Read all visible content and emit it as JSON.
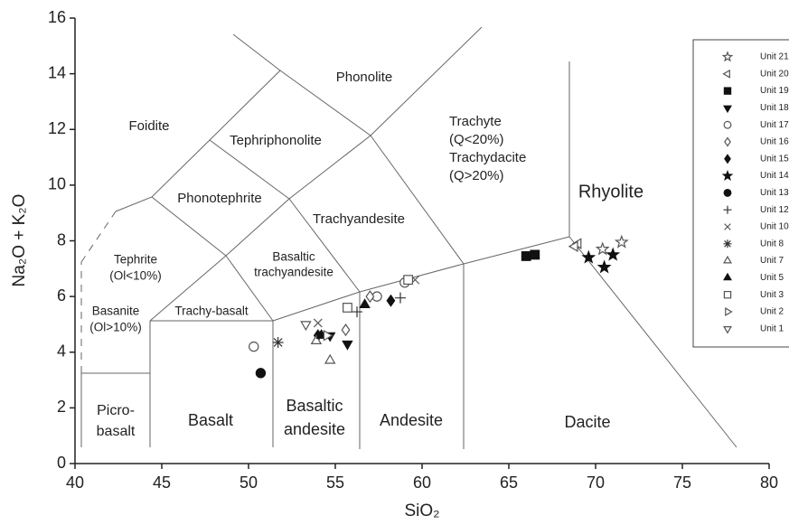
{
  "chart_data": {
    "type": "scatter",
    "xlabel": "SiO₂",
    "ylabel": "Na₂O + K₂O",
    "xlim": [
      40,
      80
    ],
    "ylim": [
      0,
      16
    ],
    "xticks": [
      40,
      45,
      50,
      55,
      60,
      65,
      70,
      75,
      80
    ],
    "yticks": [
      0,
      2,
      4,
      6,
      8,
      10,
      12,
      14,
      16
    ],
    "grid": false,
    "legend": "upper right",
    "fields": [
      [
        "Foidite"
      ],
      [
        "Phonolite"
      ],
      [
        "Tephriphonolite"
      ],
      [
        "Phonotephrite"
      ],
      [
        "Trachyandesite"
      ],
      [
        "Basaltic",
        "trachyandesite"
      ],
      [
        "Tephrite",
        "(Ol<10%)"
      ],
      [
        "Basanite",
        "(Ol>10%)"
      ],
      [
        "Trachy-basalt"
      ],
      [
        "Trachyte",
        "(Q<20%)",
        "Trachydacite",
        "(Q>20%)"
      ],
      [
        "Rhyolite"
      ],
      [
        "Picro-",
        "basalt"
      ],
      [
        "Basalt"
      ],
      [
        "Basaltic",
        "andesite"
      ],
      [
        "Andesite"
      ],
      [
        "Dacite"
      ]
    ],
    "series": [
      {
        "name": "Unit 21",
        "marker": "star",
        "filled": false,
        "color": "#555555",
        "x": [
          71.5,
          70.4
        ],
        "values": [
          7.95,
          7.7
        ]
      },
      {
        "name": "Unit 20",
        "marker": "triangle-left",
        "filled": false,
        "color": "#555555",
        "x": [
          69.0,
          68.8
        ],
        "values": [
          7.9,
          7.8
        ]
      },
      {
        "name": "Unit 19",
        "marker": "square",
        "filled": true,
        "color": "#111111",
        "x": [
          66.0,
          66.5
        ],
        "values": [
          7.45,
          7.5
        ]
      },
      {
        "name": "Unit 18",
        "marker": "triangle-down",
        "filled": true,
        "color": "#111111",
        "x": [
          55.7,
          54.7
        ],
        "values": [
          4.3,
          4.6
        ]
      },
      {
        "name": "Unit 17",
        "marker": "circle",
        "filled": false,
        "color": "#555555",
        "x": [
          50.3,
          57.4,
          59.0
        ],
        "values": [
          4.2,
          6.0,
          6.5
        ]
      },
      {
        "name": "Unit 16",
        "marker": "diamond",
        "filled": false,
        "color": "#555555",
        "x": [
          55.6,
          57.0
        ],
        "values": [
          4.8,
          6.0
        ]
      },
      {
        "name": "Unit 15",
        "marker": "diamond",
        "filled": true,
        "color": "#111111",
        "x": [
          58.2,
          54.0
        ],
        "values": [
          5.85,
          4.6
        ]
      },
      {
        "name": "Unit 14",
        "marker": "star",
        "filled": true,
        "color": "#111111",
        "x": [
          69.6,
          70.5,
          71.0
        ],
        "values": [
          7.4,
          7.05,
          7.5
        ]
      },
      {
        "name": "Unit 13",
        "marker": "circle",
        "filled": true,
        "color": "#111111",
        "x": [
          50.7
        ],
        "values": [
          3.25
        ]
      },
      {
        "name": "Unit 12",
        "marker": "plus",
        "filled": false,
        "color": "#333333",
        "x": [
          58.75,
          56.25
        ],
        "values": [
          5.95,
          5.45
        ]
      },
      {
        "name": "Unit 10",
        "marker": "cross",
        "filled": false,
        "color": "#555555",
        "x": [
          54.0,
          59.6
        ],
        "values": [
          5.05,
          6.6
        ]
      },
      {
        "name": "Unit 8",
        "marker": "asterisk",
        "filled": false,
        "color": "#333333",
        "x": [
          51.7
        ],
        "values": [
          4.35
        ]
      },
      {
        "name": "Unit 7",
        "marker": "triangle-up",
        "filled": false,
        "color": "#555555",
        "x": [
          54.7,
          53.9
        ],
        "values": [
          3.7,
          4.4
        ]
      },
      {
        "name": "Unit 5",
        "marker": "triangle-up",
        "filled": true,
        "color": "#111111",
        "x": [
          56.7,
          54.2
        ],
        "values": [
          5.7,
          4.6
        ]
      },
      {
        "name": "Unit 3",
        "marker": "square",
        "filled": false,
        "color": "#555555",
        "x": [
          55.7,
          59.2
        ],
        "values": [
          5.6,
          6.6
        ]
      },
      {
        "name": "Unit 2",
        "marker": "triangle-right",
        "filled": false,
        "color": "#555555",
        "x": [
          54.5
        ],
        "values": [
          4.6
        ]
      },
      {
        "name": "Unit 1",
        "marker": "triangle-down",
        "filled": false,
        "color": "#555555",
        "x": [
          53.3
        ],
        "values": [
          5.0
        ]
      }
    ]
  }
}
